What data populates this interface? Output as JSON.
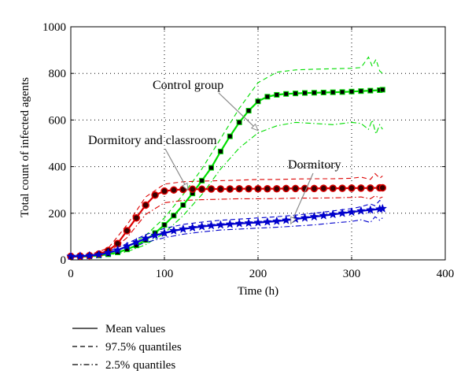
{
  "chart_data": {
    "type": "line",
    "xlabel": "Time (h)",
    "ylabel": "Total count of infected agents",
    "xlim": [
      0,
      400
    ],
    "ylim": [
      0,
      1000
    ],
    "xticks": [
      "0",
      "100",
      "200",
      "300",
      "400"
    ],
    "yticks": [
      "0",
      "200",
      "400",
      "600",
      "800",
      "1000"
    ],
    "grid": true,
    "colors": {
      "control": "#00dd00",
      "dorm_class": "#dd0000",
      "dormitory": "#0000cc"
    },
    "series": [
      {
        "name": "Control group",
        "kind": "mean",
        "marker": "square",
        "x": [
          0,
          10,
          20,
          30,
          40,
          50,
          60,
          70,
          80,
          90,
          100,
          110,
          120,
          130,
          140,
          150,
          160,
          170,
          180,
          190,
          200,
          210,
          220,
          230,
          240,
          250,
          260,
          270,
          280,
          290,
          300,
          310,
          320,
          330,
          333
        ],
        "y": [
          15,
          15,
          16,
          19,
          24,
          32,
          45,
          62,
          85,
          115,
          150,
          190,
          235,
          285,
          340,
          395,
          465,
          530,
          590,
          640,
          680,
          700,
          708,
          712,
          714,
          716,
          717,
          718,
          719,
          720,
          722,
          724,
          726,
          728,
          730
        ]
      },
      {
        "name": "Control group 97.5%",
        "kind": "upper",
        "x": [
          0,
          20,
          40,
          60,
          80,
          100,
          120,
          140,
          160,
          180,
          200,
          220,
          240,
          260,
          280,
          300,
          310,
          318,
          322,
          326,
          330,
          333
        ],
        "y": [
          18,
          20,
          30,
          55,
          105,
          180,
          280,
          390,
          520,
          650,
          760,
          805,
          815,
          818,
          820,
          822,
          825,
          870,
          830,
          860,
          810,
          800
        ]
      },
      {
        "name": "Control group 2.5%",
        "kind": "lower",
        "x": [
          0,
          20,
          40,
          60,
          80,
          100,
          120,
          140,
          160,
          180,
          200,
          220,
          240,
          260,
          280,
          300,
          310,
          318,
          322,
          326,
          330,
          333
        ],
        "y": [
          12,
          13,
          20,
          35,
          65,
          115,
          190,
          280,
          390,
          480,
          545,
          575,
          590,
          585,
          580,
          590,
          585,
          560,
          600,
          540,
          580,
          560
        ]
      },
      {
        "name": "Dormitory and classroom",
        "kind": "mean",
        "marker": "circle",
        "x": [
          0,
          10,
          20,
          30,
          40,
          50,
          60,
          70,
          80,
          90,
          100,
          110,
          120,
          130,
          140,
          150,
          160,
          170,
          180,
          190,
          200,
          210,
          220,
          230,
          240,
          250,
          260,
          270,
          280,
          290,
          300,
          310,
          320,
          330,
          333
        ],
        "y": [
          15,
          16,
          18,
          25,
          40,
          70,
          125,
          180,
          235,
          278,
          295,
          300,
          302,
          303,
          303,
          304,
          304,
          304,
          305,
          305,
          305,
          305,
          305,
          306,
          306,
          306,
          306,
          307,
          307,
          307,
          308,
          308,
          308,
          309,
          309
        ]
      },
      {
        "name": "Dormitory and classroom 97.5%",
        "kind": "upper",
        "x": [
          0,
          20,
          40,
          60,
          80,
          100,
          120,
          140,
          160,
          180,
          200,
          220,
          240,
          260,
          280,
          300,
          310,
          320,
          325,
          330,
          333
        ],
        "y": [
          18,
          22,
          50,
          150,
          270,
          325,
          335,
          338,
          340,
          342,
          345,
          345,
          347,
          348,
          348,
          350,
          355,
          345,
          370,
          350,
          360
        ]
      },
      {
        "name": "Dormitory and classroom 2.5%",
        "kind": "lower",
        "x": [
          0,
          20,
          40,
          60,
          80,
          100,
          120,
          140,
          160,
          180,
          200,
          220,
          240,
          260,
          280,
          300,
          310,
          320,
          325,
          330,
          333
        ],
        "y": [
          12,
          14,
          30,
          95,
          195,
          245,
          255,
          258,
          260,
          262,
          262,
          263,
          265,
          265,
          266,
          268,
          270,
          262,
          275,
          265,
          270
        ]
      },
      {
        "name": "Dormitory",
        "kind": "mean",
        "marker": "star",
        "x": [
          0,
          10,
          20,
          30,
          40,
          50,
          60,
          70,
          80,
          90,
          100,
          110,
          120,
          130,
          140,
          150,
          160,
          170,
          180,
          190,
          200,
          210,
          220,
          230,
          240,
          250,
          260,
          270,
          280,
          290,
          300,
          310,
          320,
          330,
          333
        ],
        "y": [
          15,
          16,
          18,
          22,
          30,
          42,
          58,
          75,
          92,
          105,
          115,
          125,
          132,
          138,
          143,
          147,
          150,
          153,
          156,
          158,
          160,
          163,
          166,
          170,
          175,
          180,
          185,
          190,
          195,
          200,
          205,
          210,
          214,
          218,
          220
        ]
      },
      {
        "name": "Dormitory 97.5%",
        "kind": "upper",
        "x": [
          0,
          20,
          40,
          60,
          80,
          100,
          120,
          140,
          160,
          180,
          200,
          220,
          240,
          260,
          280,
          300,
          310,
          320,
          325,
          330,
          333
        ],
        "y": [
          18,
          21,
          36,
          70,
          108,
          135,
          152,
          162,
          170,
          175,
          180,
          185,
          192,
          200,
          210,
          220,
          228,
          240,
          232,
          255,
          245
        ]
      },
      {
        "name": "Dormitory 2.5%",
        "kind": "lower",
        "x": [
          0,
          20,
          40,
          60,
          80,
          100,
          120,
          140,
          160,
          180,
          200,
          220,
          240,
          260,
          280,
          300,
          310,
          320,
          325,
          330,
          333
        ],
        "y": [
          12,
          14,
          24,
          45,
          75,
          95,
          110,
          120,
          128,
          132,
          136,
          140,
          145,
          150,
          158,
          165,
          172,
          160,
          185,
          170,
          180
        ]
      }
    ],
    "annotations": [
      {
        "text": "Control group",
        "arrow_to": [
          200,
          555
        ]
      },
      {
        "text": "Dormitory and classroom",
        "arrow_to": [
          125,
          300
        ]
      },
      {
        "text": "Dormitory",
        "arrow_to": [
          235,
          155
        ]
      }
    ],
    "legend": {
      "placement": "below",
      "entries": [
        {
          "label": "Mean values",
          "style": "solid"
        },
        {
          "label": "97.5% quantiles",
          "style": "dashed"
        },
        {
          "label": "2.5% quantiles",
          "style": "dashdot"
        }
      ]
    }
  }
}
